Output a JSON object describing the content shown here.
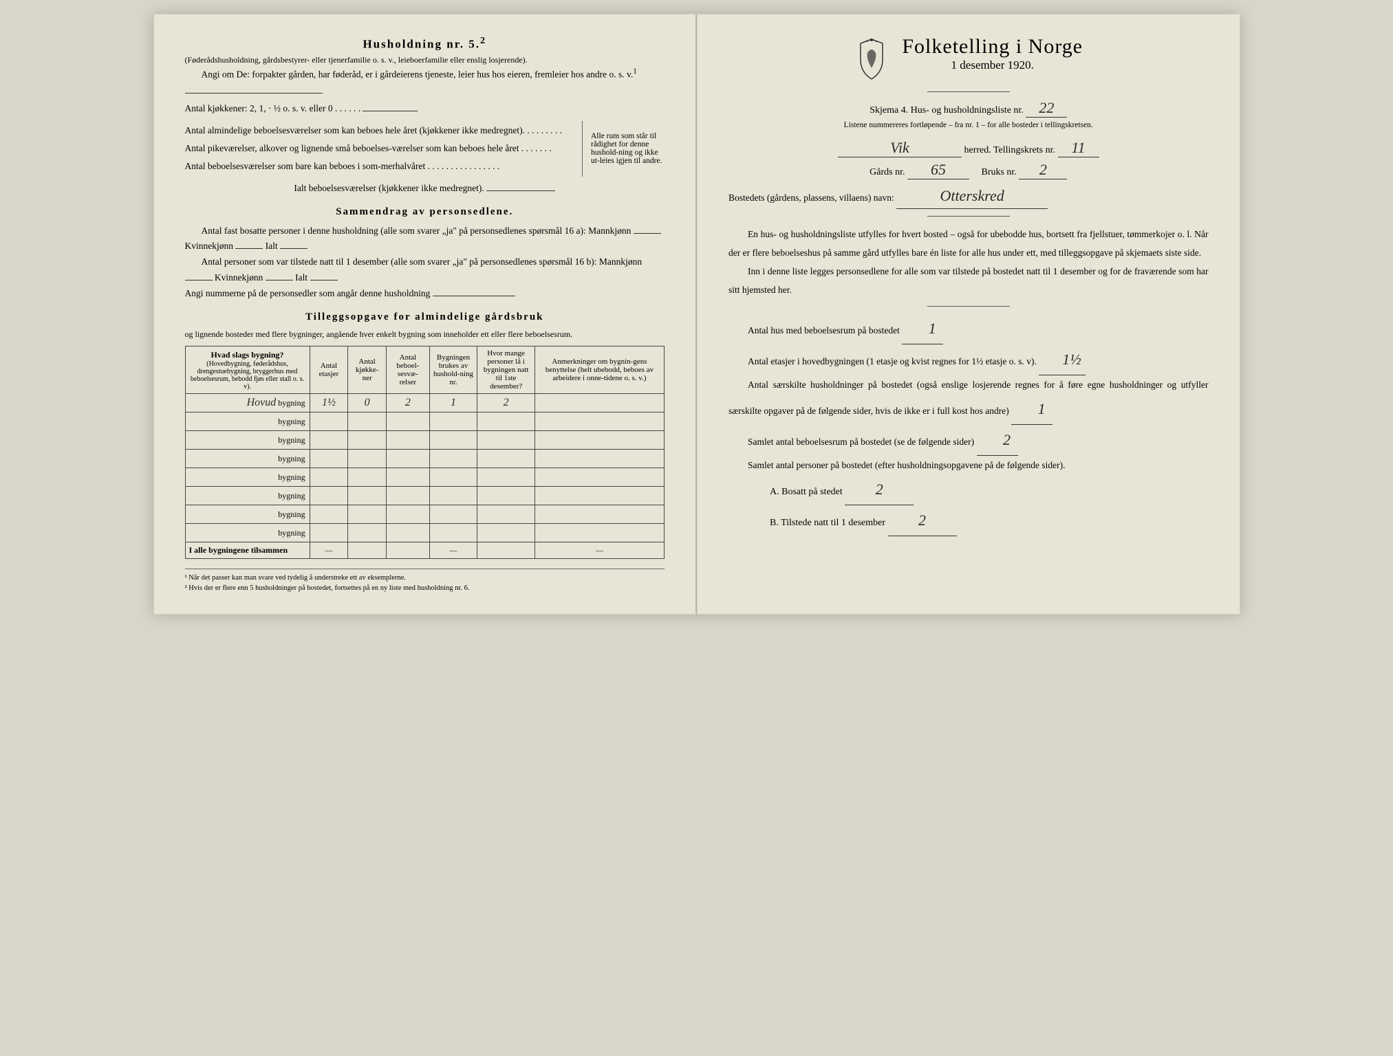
{
  "left": {
    "heading": "Husholdning nr. 5.",
    "heading_sup": "2",
    "intro_small": "(Føderådshusholdning, gårdsbestyrer- eller tjenerfamilie o. s. v., leieboerfamilie eller enslig losjerende).",
    "intro_body": "Angi om De: forpakter gården, har føderåd, er i gårdeierens tjeneste, leier hus hos eieren, fremleier hos andre o. s. v.",
    "intro_sup": "1",
    "kitchens_line": "Antal kjøkkener: 2, 1, · ½ o. s. v. eller 0 . . . . . .",
    "brace_lines": [
      "Antal almindelige beboelsesværelser som kan beboes hele året (kjøkkener ikke medregnet). . . . . . . . .",
      "Antal pikeværelser, alkover og lignende små beboelses-værelser som kan beboes hele året . . . . . . .",
      "Antal beboelsesværelser som bare kan beboes i som-merhalvåret . . . . . . . . . . . . . . . ."
    ],
    "brace_right": "Alle rum som står til rådighet for denne hushold-ning og ikke ut-leies igjen til andre.",
    "ialt_line": "Ialt beboelsesværelser (kjøkkener ikke medregnet).",
    "summary_heading": "Sammendrag av personsedlene.",
    "summary_p1a": "Antal fast bosatte personer i denne husholdning (alle som svarer „ja\" på personsedlenes spørsmål 16 a): Mannkjønn",
    "summary_p1b": "Kvinnekjønn",
    "summary_p1c": "Ialt",
    "summary_p2a": "Antal personer som var tilstede natt til 1 desember (alle som svarer „ja\" på personsedlenes spørsmål 16 b): Mannkjønn",
    "summary_p3": "Angi nummerne på de personsedler som angår denne husholdning",
    "tillegg_heading": "Tilleggsopgave for almindelige gårdsbruk",
    "tillegg_sub": "og lignende bosteder med flere bygninger, angående hver enkelt bygning som inneholder ett eller flere beboelsesrum.",
    "table": {
      "headers": {
        "col1_main": "Hvad slags bygning?",
        "col1_sub": "(Hovedbygning, føderådshus, drengestuebygning, bryggerhus med beboelsesrum, bebodd fjøs eller stall o. s. v).",
        "col2": "Antal etasjer",
        "col3": "Antal kjøkke-ner",
        "col4": "Antal beboel-sesvæ-relser",
        "col5": "Bygningen brukes av hushold-ning nr.",
        "col6": "Hvor mange personer lå i bygningen natt til 1ste desember?",
        "col7": "Anmerkninger om bygnin-gens benyttelse (helt ubebodd, beboes av arbeidere i onne-tidene o. s. v.)"
      },
      "rows": [
        {
          "name_hw": "Hovud",
          "label": "bygning",
          "c2": "1½",
          "c3": "0",
          "c4": "2",
          "c5": "1",
          "c6": "2",
          "c7": ""
        },
        {
          "name_hw": "",
          "label": "bygning",
          "c2": "",
          "c3": "",
          "c4": "",
          "c5": "",
          "c6": "",
          "c7": ""
        },
        {
          "name_hw": "",
          "label": "bygning",
          "c2": "",
          "c3": "",
          "c4": "",
          "c5": "",
          "c6": "",
          "c7": ""
        },
        {
          "name_hw": "",
          "label": "bygning",
          "c2": "",
          "c3": "",
          "c4": "",
          "c5": "",
          "c6": "",
          "c7": ""
        },
        {
          "name_hw": "",
          "label": "bygning",
          "c2": "",
          "c3": "",
          "c4": "",
          "c5": "",
          "c6": "",
          "c7": ""
        },
        {
          "name_hw": "",
          "label": "bygning",
          "c2": "",
          "c3": "",
          "c4": "",
          "c5": "",
          "c6": "",
          "c7": ""
        },
        {
          "name_hw": "",
          "label": "bygning",
          "c2": "",
          "c3": "",
          "c4": "",
          "c5": "",
          "c6": "",
          "c7": ""
        },
        {
          "name_hw": "",
          "label": "bygning",
          "c2": "",
          "c3": "",
          "c4": "",
          "c5": "",
          "c6": "",
          "c7": ""
        }
      ],
      "footer_label": "I alle bygningene tilsammen",
      "dash": "—"
    },
    "footnote1": "¹ Når det passer kan man svare ved tydelig å understreke ett av eksemplerne.",
    "footnote2": "² Hvis der er flere enn 5 husholdninger på bostedet, fortsettes på en ny liste med husholdning nr. 6."
  },
  "right": {
    "title": "Folketelling i Norge",
    "date": "1 desember 1920.",
    "form_line_a": "Skjema 4.  Hus- og husholdningsliste nr.",
    "form_nr_hw": "22",
    "form_small": "Listene nummereres fortløpende – fra nr. 1 – for alle bosteder i tellingskretsen.",
    "herred_hw": "Vik",
    "herred_label": "herred.   Tellingskrets nr.",
    "krets_hw": "11",
    "gards_label": "Gårds nr.",
    "gards_hw": "65",
    "bruks_label": "Bruks nr.",
    "bruks_hw": "2",
    "bosted_label": "Bostedets (gårdens, plassens, villaens) navn:",
    "bosted_hw": "Otterskred",
    "para1": "En hus- og husholdningsliste utfylles for hvert bosted – også for ubebodde hus, bortsett fra fjellstuer, tømmerkojer o. l.  Når der er flere beboelseshus på samme gård utfylles bare én liste for alle hus under ett, med tilleggsopgave på skjemaets siste side.",
    "para2": "Inn i denne liste legges personsedlene for alle som var tilstede på bostedet natt til 1 desember og for de fraværende som har sitt hjemsted her.",
    "q1": "Antal hus med beboelsesrum på bostedet",
    "q1_hw": "1",
    "q2a": "Antal etasjer i hovedbygningen (1 etasje og kvist regnes for 1½ etasje o. s. v).",
    "q2_hw": "1½",
    "q3": "Antal særskilte husholdninger på bostedet (også enslige losjerende regnes for å føre egne husholdninger og utfyller særskilte opgaver på de følgende sider, hvis de ikke er i full kost hos andre)",
    "q3_hw": "1",
    "q4": "Samlet antal beboelsesrum på bostedet (se de følgende sider)",
    "q4_hw": "2",
    "q5": "Samlet antal personer på bostedet (efter husholdningsopgavene på de følgende sider).",
    "qA_label": "A.  Bosatt på stedet",
    "qA_hw": "2",
    "qB_label": "B.  Tilstede natt til 1 desember",
    "qB_hw": "2"
  },
  "colors": {
    "paper": "#e8e5d6",
    "ink": "#1a1a1a",
    "hw": "#2a2a2a"
  }
}
